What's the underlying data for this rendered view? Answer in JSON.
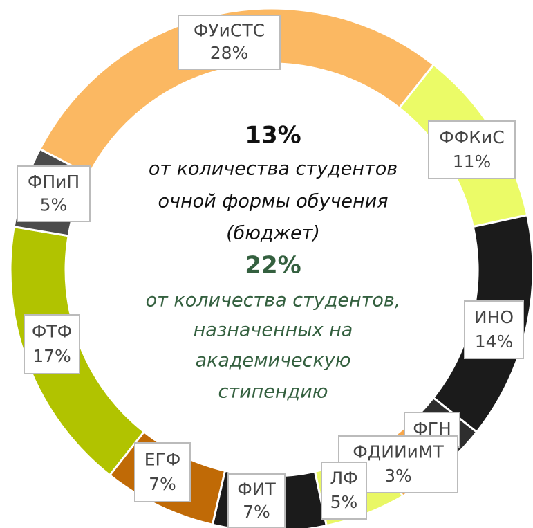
{
  "chart_data": {
    "type": "donut",
    "categories": [
      "ФУиСТС",
      "ФФКиС",
      "ИНО",
      "ФГН",
      "ФДИИиМТ",
      "ЛФ",
      "ФИТ",
      "ЕГФ",
      "ФТФ",
      "ФПиП"
    ],
    "values": [
      28,
      11,
      14,
      3,
      3,
      5,
      7,
      7,
      17,
      5
    ],
    "value_labels": [
      "28%",
      "11%",
      "14%",
      null,
      "3%",
      "5%",
      "7%",
      "7%",
      "17%",
      "5%"
    ],
    "colors": [
      "#fbb862",
      "#ebfb67",
      "#1b1b1b",
      "#2e2e2e",
      "#f7a649",
      "#e9f765",
      "#1b1b1b",
      "#c06a06",
      "#b1c300",
      "#4b4b4b"
    ],
    "center_text": [
      {
        "text": "13%",
        "color": "#111111",
        "bold": true
      },
      {
        "text": "от количества студентов",
        "color": "#111111",
        "bold": false
      },
      {
        "text": "очной формы обучения",
        "color": "#111111",
        "bold": false
      },
      {
        "text": "(бюджет)",
        "color": "#111111",
        "bold": false
      },
      {
        "text": "22%",
        "color": "#34603f",
        "bold": true
      },
      {
        "text": "от количества студентов,",
        "color": "#34603f",
        "bold": false
      },
      {
        "text": "назначенных на",
        "color": "#34603f",
        "bold": false
      },
      {
        "text": "академическую",
        "color": "#34603f",
        "bold": false
      },
      {
        "text": "стипендию",
        "color": "#34603f",
        "bold": false
      }
    ]
  }
}
